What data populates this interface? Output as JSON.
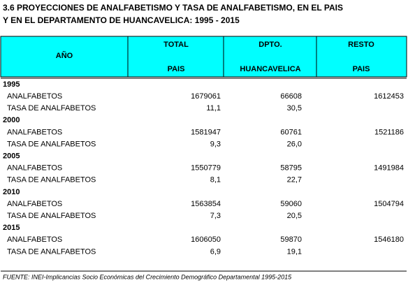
{
  "header": {
    "title_lines": [
      "3.6  PROYECCIONES DE ANALFABETISMO Y TASA DE ANALFABETISMO, EN EL PAIS",
      "Y EN EL DEPARTAMENTO DE HUANCAVELICA: 1995 - 2015"
    ]
  },
  "table": {
    "columns": [
      {
        "label": "AÑO"
      },
      {
        "top": "TOTAL",
        "bottom": "PAIS"
      },
      {
        "top": "DPTO.",
        "bottom": "HUANCAVELICA"
      },
      {
        "top": "RESTO",
        "bottom": "PAIS"
      }
    ],
    "groups": [
      {
        "year": "1995",
        "rows": [
          {
            "label": "ANALFABETOS",
            "values": [
              "1679061",
              "66608",
              "1612453"
            ]
          },
          {
            "label": "TASA DE ANALFABETOS",
            "values": [
              "11,1",
              "30,5"
            ]
          }
        ]
      },
      {
        "year": "2000",
        "rows": [
          {
            "label": "ANALFABETOS",
            "values": [
              "1581947",
              "60761",
              "1521186"
            ]
          },
          {
            "label": "TASA DE ANALFABETOS",
            "values": [
              "9,3",
              "26,0"
            ]
          }
        ]
      },
      {
        "year": "2005",
        "rows": [
          {
            "label": "ANALFABETOS",
            "values": [
              "1550779",
              "58795",
              "1491984"
            ]
          },
          {
            "label": "TASA DE ANALFABETOS",
            "values": [
              "8,1",
              "22,7"
            ]
          }
        ]
      },
      {
        "year": "2010",
        "rows": [
          {
            "label": "ANALFABETOS",
            "values": [
              "1563854",
              "59060",
              "1504794"
            ]
          },
          {
            "label": "TASA DE ANALFABETOS",
            "values": [
              "7,3",
              "20,5"
            ]
          }
        ]
      },
      {
        "year": "2015",
        "rows": [
          {
            "label": "ANALFABETOS",
            "values": [
              "1606050",
              "59870",
              "1546180"
            ]
          },
          {
            "label": "TASA DE ANALFABETOS",
            "values": [
              "6,9",
              "19,1"
            ]
          }
        ]
      }
    ]
  },
  "footer": {
    "source": "FUENTE: INEI-Implicancias Socio Económicas del Crecimiento Demográfico Departamental 1995-2015"
  }
}
